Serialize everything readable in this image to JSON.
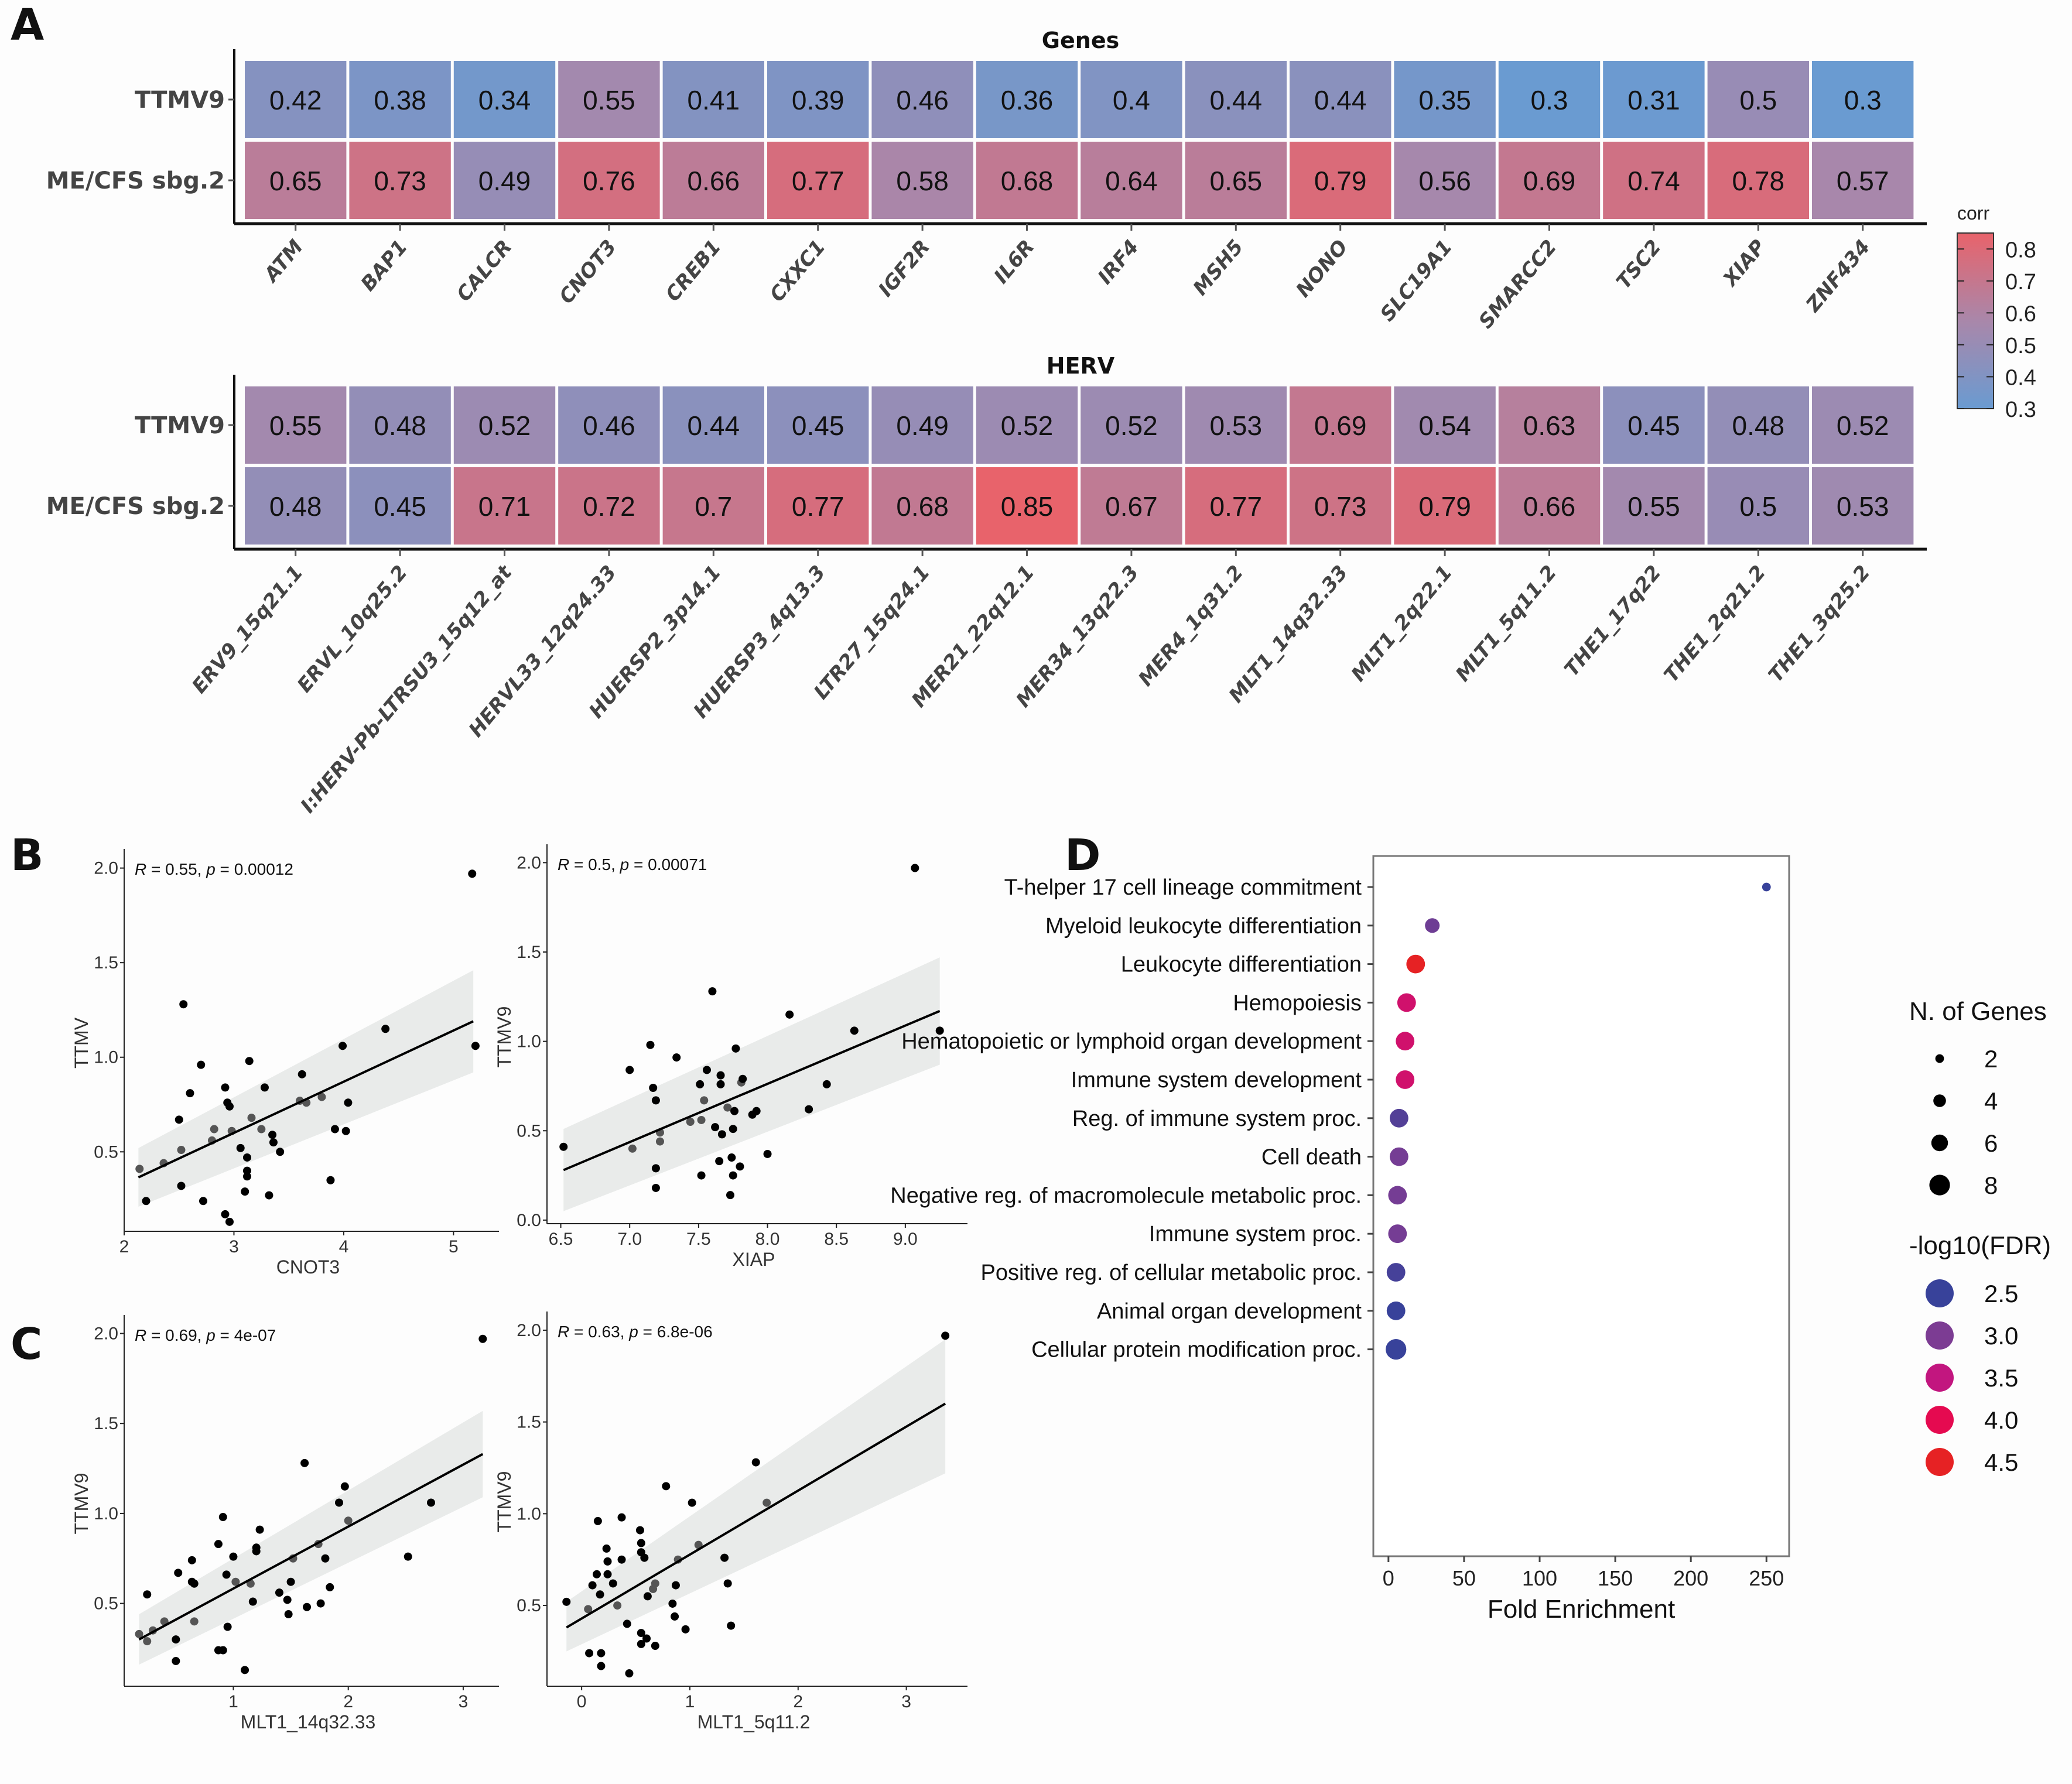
{
  "panels": {
    "A": "A",
    "B": "B",
    "C": "C",
    "D": "D"
  },
  "chart_data": [
    {
      "id": "heatmap-genes",
      "type": "heatmap",
      "title": "Genes",
      "rows": [
        "TTMV9",
        "ME/CFS sbg.2"
      ],
      "columns": [
        "ATM",
        "BAP1",
        "CALCR",
        "CNOT3",
        "CREB1",
        "CXXC1",
        "IGF2R",
        "IL6R",
        "IRF4",
        "MSH5",
        "NONO",
        "SLC19A1",
        "SMARCC2",
        "TSC2",
        "XIAP",
        "ZNF434"
      ],
      "values": [
        [
          0.42,
          0.38,
          0.34,
          0.55,
          0.41,
          0.39,
          0.46,
          0.36,
          0.4,
          0.44,
          0.44,
          0.35,
          0.3,
          0.31,
          0.5,
          0.3
        ],
        [
          0.65,
          0.73,
          0.49,
          0.76,
          0.66,
          0.77,
          0.58,
          0.68,
          0.64,
          0.65,
          0.79,
          0.56,
          0.69,
          0.74,
          0.78,
          0.57
        ]
      ]
    },
    {
      "id": "heatmap-herv",
      "type": "heatmap",
      "title": "HERV",
      "rows": [
        "TTMV9",
        "ME/CFS sbg.2"
      ],
      "columns": [
        "ERV9_15q21.1",
        "ERVL_10q25.2",
        "I:HERV-Pb-LTRSU3_15q12_at",
        "HERVL33_12q24.33",
        "HUERSP2_3p14.1",
        "HUERSP3_4q13.3",
        "LTR27_15q24.1",
        "MER21_22q12.1",
        "MER34_13q22.3",
        "MER4_1q31.2",
        "MLT1_14q32.33",
        "MLT1_2q22.1",
        "MLT1_5q11.2",
        "THE1_17q22",
        "THE1_2q21.2",
        "THE1_3q25.2"
      ],
      "values": [
        [
          0.55,
          0.48,
          0.52,
          0.46,
          0.44,
          0.45,
          0.49,
          0.52,
          0.52,
          0.53,
          0.69,
          0.54,
          0.63,
          0.45,
          0.48,
          0.52
        ],
        [
          0.48,
          0.45,
          0.71,
          0.72,
          0.7,
          0.77,
          0.68,
          0.85,
          0.67,
          0.77,
          0.73,
          0.79,
          0.66,
          0.55,
          0.5,
          0.53
        ]
      ]
    },
    {
      "id": "colorbar",
      "type": "legend",
      "title": "corr",
      "ticks": [
        0.8,
        0.7,
        0.6,
        0.5,
        0.4,
        0.3
      ],
      "range": [
        0.3,
        0.85
      ],
      "colors": {
        "low": "#6a9bd1",
        "mid": "#a987aa",
        "high": "#e8636b"
      }
    },
    {
      "id": "scatter-cnot3",
      "type": "scatter",
      "xlabel": "CNOT3",
      "ylabel": "TTMV",
      "annotation": {
        "R": "0.55",
        "p": "0.00012"
      },
      "xlim": [
        2.0,
        5.35
      ],
      "ylim": [
        0.08,
        2.07
      ],
      "xticks": [
        2,
        3,
        4,
        5
      ],
      "yticks": [
        0.5,
        1.0,
        1.5,
        2.0
      ],
      "fit": {
        "x": [
          2.13,
          5.18
        ],
        "y": [
          0.365,
          1.19
        ],
        "ci_lo": [
          0.21,
          0.92
        ],
        "ci_hi": [
          0.52,
          1.46
        ]
      },
      "points": [
        [
          2.14,
          0.41
        ],
        [
          2.2,
          0.24
        ],
        [
          2.36,
          0.44
        ],
        [
          2.5,
          0.67
        ],
        [
          2.52,
          0.51
        ],
        [
          2.52,
          0.32
        ],
        [
          2.54,
          1.28
        ],
        [
          2.6,
          0.81
        ],
        [
          2.7,
          0.96
        ],
        [
          2.72,
          0.24
        ],
        [
          2.8,
          0.56
        ],
        [
          2.82,
          0.62
        ],
        [
          2.92,
          0.84
        ],
        [
          2.94,
          0.76
        ],
        [
          2.96,
          0.74
        ],
        [
          2.98,
          0.61
        ],
        [
          2.92,
          0.17
        ],
        [
          2.96,
          0.13
        ],
        [
          3.06,
          0.52
        ],
        [
          3.1,
          0.29
        ],
        [
          3.12,
          0.47
        ],
        [
          3.12,
          0.4
        ],
        [
          3.12,
          0.37
        ],
        [
          3.14,
          0.98
        ],
        [
          3.16,
          0.68
        ],
        [
          3.25,
          0.62
        ],
        [
          3.28,
          0.84
        ],
        [
          3.32,
          0.27
        ],
        [
          3.35,
          0.59
        ],
        [
          3.36,
          0.55
        ],
        [
          3.42,
          0.5
        ],
        [
          3.6,
          0.77
        ],
        [
          3.62,
          0.91
        ],
        [
          3.66,
          0.76
        ],
        [
          3.8,
          0.79
        ],
        [
          3.88,
          0.35
        ],
        [
          3.92,
          0.62
        ],
        [
          3.99,
          1.06
        ],
        [
          4.02,
          0.61
        ],
        [
          4.04,
          0.76
        ],
        [
          4.38,
          1.15
        ],
        [
          5.17,
          1.97
        ],
        [
          5.2,
          1.06
        ]
      ]
    },
    {
      "id": "scatter-xiap",
      "type": "scatter",
      "xlabel": "XIAP",
      "ylabel": "TTMV9",
      "annotation": {
        "R": "0.5",
        "p": "0.00071"
      },
      "xlim": [
        6.4,
        9.4
      ],
      "ylim": [
        -0.02,
        2.07
      ],
      "xticks": [
        6.5,
        7.0,
        7.5,
        8.0,
        8.5,
        9.0
      ],
      "yticks": [
        0.0,
        0.5,
        1.0,
        1.5,
        2.0
      ],
      "fit": {
        "x": [
          6.52,
          9.25
        ],
        "y": [
          0.28,
          1.17
        ],
        "ci_lo": [
          0.05,
          0.87
        ],
        "ci_hi": [
          0.51,
          1.47
        ]
      },
      "points": [
        [
          6.52,
          0.41
        ],
        [
          7.0,
          0.84
        ],
        [
          7.02,
          0.4
        ],
        [
          7.15,
          0.98
        ],
        [
          7.17,
          0.74
        ],
        [
          7.19,
          0.67
        ],
        [
          7.19,
          0.29
        ],
        [
          7.19,
          0.18
        ],
        [
          7.22,
          0.49
        ],
        [
          7.22,
          0.44
        ],
        [
          7.34,
          0.91
        ],
        [
          7.44,
          0.55
        ],
        [
          7.51,
          0.76
        ],
        [
          7.52,
          0.25
        ],
        [
          7.52,
          0.56
        ],
        [
          7.54,
          0.67
        ],
        [
          7.56,
          0.84
        ],
        [
          7.6,
          1.28
        ],
        [
          7.62,
          0.52
        ],
        [
          7.65,
          0.33
        ],
        [
          7.66,
          0.81
        ],
        [
          7.66,
          0.76
        ],
        [
          7.67,
          0.48
        ],
        [
          7.71,
          0.63
        ],
        [
          7.73,
          0.14
        ],
        [
          7.74,
          0.35
        ],
        [
          7.75,
          0.51
        ],
        [
          7.75,
          0.25
        ],
        [
          7.77,
          0.96
        ],
        [
          7.76,
          0.61
        ],
        [
          7.8,
          0.3
        ],
        [
          7.81,
          0.77
        ],
        [
          7.82,
          0.79
        ],
        [
          7.89,
          0.59
        ],
        [
          7.92,
          0.61
        ],
        [
          8.0,
          0.37
        ],
        [
          8.16,
          1.15
        ],
        [
          8.3,
          0.62
        ],
        [
          8.43,
          0.76
        ],
        [
          8.63,
          1.06
        ],
        [
          9.07,
          1.97
        ],
        [
          9.25,
          1.06
        ]
      ]
    },
    {
      "id": "scatter-mlt1-14q",
      "type": "scatter",
      "xlabel": "MLT1_14q32.33",
      "ylabel": "TTMV9",
      "annotation": {
        "R": "0.69",
        "p": "4e-07"
      },
      "xlim": [
        0.05,
        3.25
      ],
      "ylim": [
        0.04,
        2.07
      ],
      "xticks": [
        1,
        2,
        3
      ],
      "yticks": [
        0.5,
        1.0,
        1.5,
        2.0
      ],
      "fit": {
        "x": [
          0.18,
          3.17
        ],
        "y": [
          0.3,
          1.33
        ],
        "ci_lo": [
          0.16,
          1.09
        ],
        "ci_hi": [
          0.44,
          1.57
        ]
      },
      "points": [
        [
          0.18,
          0.33
        ],
        [
          0.25,
          0.29
        ],
        [
          0.25,
          0.55
        ],
        [
          0.3,
          0.35
        ],
        [
          0.4,
          0.4
        ],
        [
          0.5,
          0.18
        ],
        [
          0.5,
          0.3
        ],
        [
          0.52,
          0.67
        ],
        [
          0.64,
          0.74
        ],
        [
          0.64,
          0.62
        ],
        [
          0.66,
          0.4
        ],
        [
          0.66,
          0.61
        ],
        [
          0.87,
          0.83
        ],
        [
          0.87,
          0.24
        ],
        [
          0.91,
          0.98
        ],
        [
          0.91,
          0.24
        ],
        [
          0.94,
          0.66
        ],
        [
          0.95,
          0.37
        ],
        [
          1.0,
          0.76
        ],
        [
          1.02,
          0.62
        ],
        [
          1.1,
          0.13
        ],
        [
          1.15,
          0.61
        ],
        [
          1.17,
          0.51
        ],
        [
          1.2,
          0.81
        ],
        [
          1.2,
          0.79
        ],
        [
          1.23,
          0.91
        ],
        [
          1.4,
          0.56
        ],
        [
          1.47,
          0.52
        ],
        [
          1.48,
          0.44
        ],
        [
          1.5,
          0.62
        ],
        [
          1.52,
          0.75
        ],
        [
          1.62,
          1.28
        ],
        [
          1.64,
          0.48
        ],
        [
          1.74,
          0.83
        ],
        [
          1.76,
          0.5
        ],
        [
          1.8,
          0.75
        ],
        [
          1.84,
          0.59
        ],
        [
          1.92,
          1.06
        ],
        [
          1.97,
          1.15
        ],
        [
          2.0,
          0.96
        ],
        [
          2.52,
          0.76
        ],
        [
          2.72,
          1.06
        ],
        [
          3.17,
          1.97
        ]
      ]
    },
    {
      "id": "scatter-mlt1-5q",
      "type": "scatter",
      "xlabel": "MLT1_5q11.2",
      "ylabel": "TTMV9",
      "annotation": {
        "R": "0.63",
        "p": "6.8e-06"
      },
      "xlim": [
        -0.32,
        3.5
      ],
      "ylim": [
        0.06,
        2.07
      ],
      "xticks": [
        0,
        1,
        2,
        3
      ],
      "yticks": [
        0.5,
        1.0,
        1.5,
        2.0
      ],
      "fit": {
        "x": [
          -0.14,
          3.36
        ],
        "y": [
          0.38,
          1.6
        ],
        "ci_lo": [
          0.25,
          1.22
        ],
        "ci_hi": [
          0.52,
          1.95
        ]
      },
      "points": [
        [
          -0.14,
          0.52
        ],
        [
          0.06,
          0.48
        ],
        [
          0.07,
          0.24
        ],
        [
          0.1,
          0.61
        ],
        [
          0.14,
          0.67
        ],
        [
          0.15,
          0.96
        ],
        [
          0.17,
          0.56
        ],
        [
          0.18,
          0.24
        ],
        [
          0.18,
          0.17
        ],
        [
          0.23,
          0.81
        ],
        [
          0.24,
          0.74
        ],
        [
          0.24,
          0.67
        ],
        [
          0.29,
          0.62
        ],
        [
          0.33,
          0.5
        ],
        [
          0.37,
          0.75
        ],
        [
          0.37,
          0.98
        ],
        [
          0.42,
          0.4
        ],
        [
          0.44,
          0.13
        ],
        [
          0.54,
          0.91
        ],
        [
          0.55,
          0.84
        ],
        [
          0.55,
          0.79
        ],
        [
          0.55,
          0.35
        ],
        [
          0.55,
          0.29
        ],
        [
          0.58,
          0.76
        ],
        [
          0.6,
          0.32
        ],
        [
          0.61,
          0.55
        ],
        [
          0.66,
          0.59
        ],
        [
          0.68,
          0.62
        ],
        [
          0.68,
          0.28
        ],
        [
          0.78,
          1.15
        ],
        [
          0.84,
          0.51
        ],
        [
          0.86,
          0.44
        ],
        [
          0.87,
          0.61
        ],
        [
          0.89,
          0.75
        ],
        [
          0.96,
          0.37
        ],
        [
          1.02,
          1.06
        ],
        [
          1.08,
          0.83
        ],
        [
          1.32,
          0.76
        ],
        [
          1.35,
          0.62
        ],
        [
          1.38,
          0.39
        ],
        [
          1.61,
          1.28
        ],
        [
          1.71,
          1.06
        ],
        [
          3.36,
          1.97
        ]
      ]
    },
    {
      "id": "dotplot-enrichment",
      "type": "scatter",
      "xlabel": "Fold Enrichment",
      "xlim": [
        -10,
        265
      ],
      "xticks": [
        0,
        50,
        100,
        150,
        200,
        250
      ],
      "categories": [
        "T-helper 17 cell lineage commitment",
        "Myeloid leukocyte differentiation",
        "Leukocyte differentiation",
        "Hemopoiesis",
        "Hematopoietic or lymphoid organ development",
        "Immune system development",
        "Reg. of immune system proc.",
        "Cell death",
        "Negative reg. of macromolecule metabolic proc.",
        "Immune system proc.",
        "Positive reg. of cellular metabolic proc.",
        "Animal organ development",
        "Cellular protein modification proc."
      ],
      "fold_enrichment": [
        250,
        29,
        18,
        12,
        11,
        11,
        7,
        7,
        6,
        6,
        5,
        5,
        5
      ],
      "n_genes": [
        2,
        5,
        7,
        7,
        7,
        7,
        7,
        7,
        7,
        7,
        7,
        7,
        8
      ],
      "neg_log10_fdr": [
        2.4,
        2.9,
        4.5,
        3.7,
        3.7,
        3.7,
        2.7,
        2.95,
        2.95,
        2.95,
        2.6,
        2.5,
        2.5
      ],
      "size_legend": {
        "title": "N. of Genes",
        "values": [
          2,
          4,
          6,
          8
        ]
      },
      "color_legend": {
        "title": "-log10(FDR)",
        "values": [
          2.5,
          3.0,
          3.5,
          4.0,
          4.5
        ],
        "colors": [
          "#38429a",
          "#7c3c93",
          "#c2167f",
          "#e50a50",
          "#e62224"
        ]
      }
    }
  ]
}
